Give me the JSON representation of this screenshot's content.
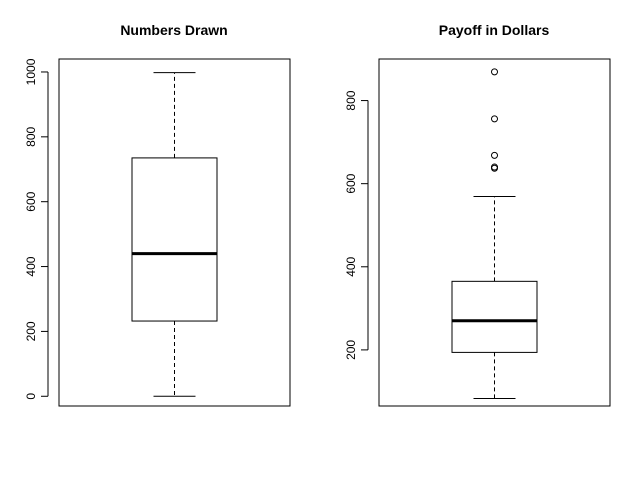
{
  "chart_data": [
    {
      "type": "boxplot",
      "title": "Numbers Drawn",
      "xlabel": "",
      "ylabel": "",
      "ylim": [
        -30,
        1040
      ],
      "yticks": [
        0,
        200,
        400,
        600,
        800,
        1000
      ],
      "box": {
        "whisker_low": 0,
        "q1": 232,
        "median": 440,
        "q3": 735,
        "whisker_high": 998
      },
      "outliers": []
    },
    {
      "type": "boxplot",
      "title": "Payoff in Dollars",
      "xlabel": "",
      "ylabel": "",
      "ylim": [
        65,
        900
      ],
      "yticks": [
        200,
        400,
        600,
        800
      ],
      "box": {
        "whisker_low": 83,
        "q1": 194,
        "median": 270,
        "q3": 365,
        "whisker_high": 569
      },
      "outliers": [
        637,
        640,
        668,
        756,
        869
      ]
    }
  ]
}
